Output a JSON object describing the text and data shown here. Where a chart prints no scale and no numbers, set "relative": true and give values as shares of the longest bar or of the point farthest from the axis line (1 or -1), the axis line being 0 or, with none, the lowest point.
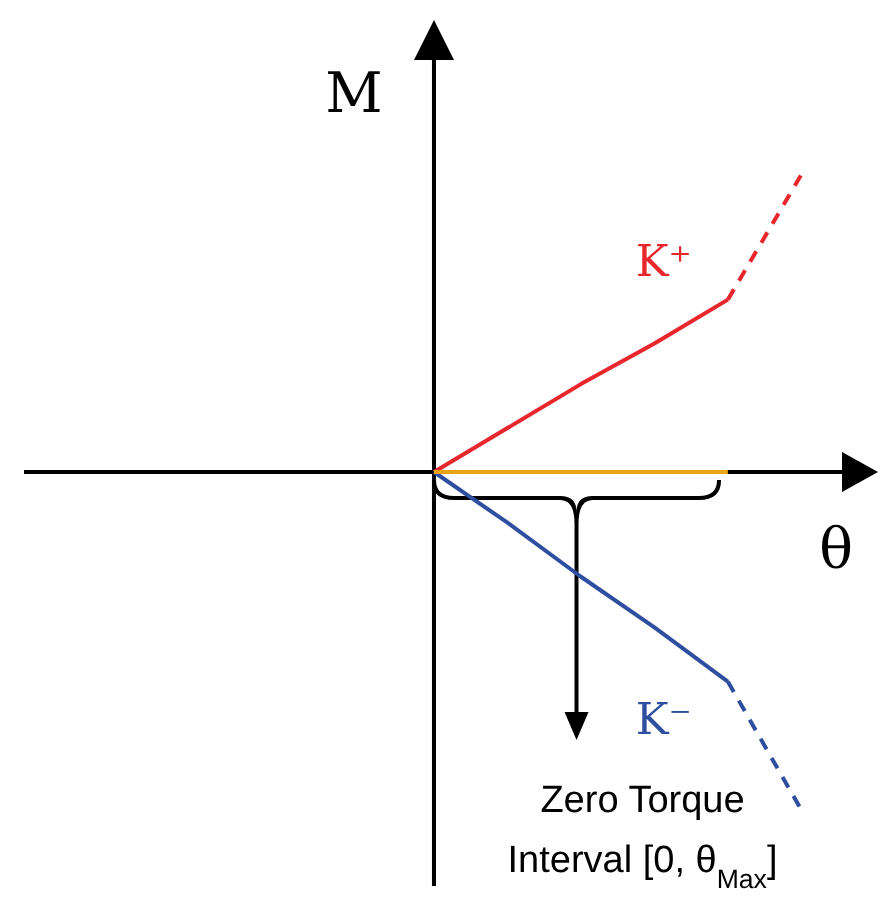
{
  "chart_data": {
    "type": "line",
    "relative": true,
    "xlabel": "θ",
    "ylabel": "M",
    "categories": [
      null,
      null,
      null,
      null,
      null,
      null
    ],
    "marker": "none",
    "series": [
      {
        "name": "K⁺",
        "color": "#e8262b",
        "values": [
          0,
          0.13,
          0.26,
          0.38,
          0.51,
          null
        ],
        "line_style": "solid"
      },
      {
        "color": "#e8262b",
        "values": [
          null,
          null,
          null,
          null,
          0.51,
          0.88
        ],
        "line_style": "dashed"
      },
      {
        "name": "K⁻",
        "color": "#2e4ea0",
        "values": [
          0,
          -0.15,
          -0.31,
          -0.46,
          -0.62,
          null
        ],
        "line_style": "solid"
      },
      {
        "color": "#2e4ea0",
        "values": [
          null,
          null,
          null,
          null,
          -0.62,
          -1
        ],
        "line_style": "dashed"
      },
      {
        "color": "#e8a317",
        "values": [
          0,
          0,
          0,
          0,
          0,
          null
        ],
        "line_style": "solid"
      }
    ],
    "annotations": [
      "Zero Torque Interval [0, θ$_{Max}$]"
    ]
  }
}
